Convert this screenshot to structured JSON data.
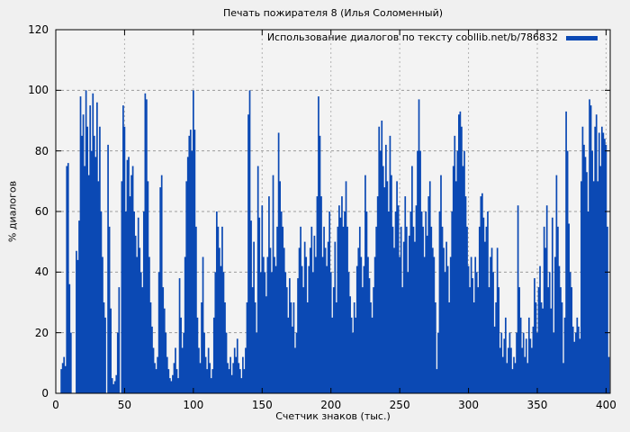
{
  "colors": {
    "series": "#0b49b4",
    "background": "#f0f0f0",
    "plot_background": "#f3f3f3",
    "grid_horizontal": "#9c9c9c",
    "grid_vertical": "#b2b2b2",
    "axis": "#000000"
  },
  "chart_data": {
    "type": "bar",
    "style": "impulses",
    "title": "Печать пожирателя 8 (Илья Соломенный)",
    "legend_label": "Использование диалогов по тексту coollib.net/b/786832",
    "legend_position": "top-right",
    "xlabel": "Счетчик знаков (тыс.)",
    "ylabel": "% диалогов",
    "xlim": [
      0,
      403
    ],
    "ylim": [
      0,
      120
    ],
    "x_ticks": [
      0,
      50,
      100,
      150,
      200,
      250,
      300,
      350,
      400
    ],
    "y_ticks": [
      0,
      20,
      40,
      60,
      80,
      100,
      120
    ],
    "grid": true,
    "x_start": 0,
    "x_step": 1,
    "values": [
      0,
      0,
      0,
      0,
      8,
      10,
      12,
      9,
      75,
      76,
      36,
      20,
      0,
      0,
      0,
      47,
      44,
      57,
      98,
      85,
      92,
      75,
      100,
      88,
      72,
      95,
      80,
      99,
      85,
      78,
      96,
      70,
      88,
      60,
      45,
      30,
      25,
      0,
      82,
      55,
      28,
      5,
      3,
      4,
      6,
      20,
      35,
      0,
      70,
      95,
      88,
      60,
      77,
      78,
      65,
      72,
      75,
      60,
      52,
      45,
      58,
      48,
      40,
      35,
      60,
      99,
      97,
      70,
      45,
      30,
      22,
      15,
      10,
      8,
      12,
      40,
      68,
      72,
      35,
      28,
      20,
      12,
      8,
      5,
      4,
      6,
      10,
      15,
      8,
      5,
      38,
      25,
      15,
      20,
      45,
      70,
      78,
      85,
      87,
      80,
      100,
      87,
      55,
      25,
      15,
      10,
      30,
      45,
      20,
      12,
      8,
      15,
      10,
      5,
      8,
      25,
      40,
      60,
      55,
      48,
      42,
      55,
      40,
      30,
      20,
      10,
      8,
      12,
      6,
      10,
      15,
      12,
      18,
      10,
      8,
      5,
      12,
      8,
      15,
      30,
      92,
      100,
      57,
      35,
      50,
      30,
      20,
      75,
      58,
      40,
      62,
      45,
      40,
      32,
      45,
      65,
      48,
      40,
      72,
      45,
      42,
      55,
      86,
      70,
      60,
      55,
      48,
      40,
      35,
      25,
      38,
      30,
      22,
      30,
      15,
      20,
      38,
      48,
      55,
      42,
      35,
      50,
      45,
      30,
      42,
      48,
      55,
      40,
      52,
      45,
      65,
      98,
      85,
      65,
      45,
      55,
      48,
      42,
      50,
      60,
      40,
      25,
      35,
      50,
      30,
      55,
      62,
      58,
      65,
      55,
      60,
      70,
      55,
      40,
      32,
      25,
      20,
      30,
      25,
      42,
      48,
      55,
      45,
      35,
      42,
      72,
      60,
      45,
      38,
      30,
      25,
      35,
      45,
      55,
      65,
      88,
      80,
      90,
      75,
      68,
      82,
      70,
      60,
      85,
      72,
      55,
      48,
      60,
      70,
      62,
      45,
      55,
      35,
      50,
      65,
      55,
      40,
      52,
      60,
      75,
      55,
      50,
      62,
      80,
      97,
      80,
      60,
      55,
      45,
      60,
      52,
      65,
      70,
      55,
      48,
      45,
      30,
      8,
      20,
      60,
      72,
      55,
      48,
      40,
      50,
      42,
      30,
      45,
      60,
      75,
      85,
      70,
      80,
      92,
      93,
      88,
      75,
      80,
      65,
      55,
      42,
      35,
      45,
      38,
      30,
      45,
      40,
      35,
      55,
      65,
      66,
      58,
      50,
      55,
      60,
      35,
      45,
      48,
      40,
      22,
      30,
      48,
      35,
      15,
      20,
      12,
      18,
      25,
      10,
      15,
      20,
      15,
      8,
      12,
      10,
      20,
      62,
      35,
      25,
      15,
      20,
      12,
      18,
      10,
      25,
      18,
      15,
      22,
      38,
      30,
      20,
      35,
      42,
      30,
      28,
      55,
      48,
      62,
      35,
      40,
      28,
      58,
      20,
      45,
      72,
      55,
      42,
      35,
      30,
      10,
      25,
      93,
      80,
      56,
      40,
      35,
      22,
      17,
      20,
      25,
      22,
      18,
      70,
      88,
      82,
      78,
      73,
      60,
      97,
      95,
      80,
      70,
      88,
      92,
      70,
      86,
      75,
      88,
      86,
      84,
      82,
      55,
      12
    ]
  }
}
